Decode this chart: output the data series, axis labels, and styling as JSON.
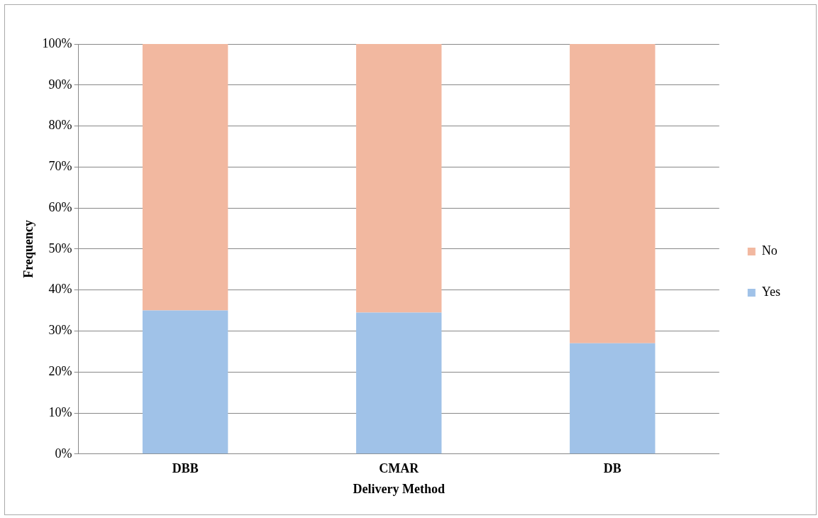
{
  "chart_data": {
    "type": "bar",
    "stacked": true,
    "xlabel": "Delivery Method",
    "ylabel": "Frequency",
    "categories": [
      "DBB",
      "CMAR",
      "DB"
    ],
    "series": [
      {
        "name": "Yes",
        "color": "#a0c2e8",
        "values": [
          35,
          34.5,
          27
        ]
      },
      {
        "name": "No",
        "color": "#f2b8a0",
        "values": [
          65,
          65.5,
          73
        ]
      }
    ],
    "ylim": [
      0,
      100
    ],
    "yticks": [
      {
        "value": 0,
        "label": "0%"
      },
      {
        "value": 10,
        "label": "10%"
      },
      {
        "value": 20,
        "label": "20%"
      },
      {
        "value": 30,
        "label": "30%"
      },
      {
        "value": 40,
        "label": "40%"
      },
      {
        "value": 50,
        "label": "50%"
      },
      {
        "value": 60,
        "label": "60%"
      },
      {
        "value": 70,
        "label": "70%"
      },
      {
        "value": 80,
        "label": "80%"
      },
      {
        "value": 90,
        "label": "90%"
      },
      {
        "value": 100,
        "label": "100%"
      }
    ],
    "grid": "y",
    "legend": "right"
  }
}
